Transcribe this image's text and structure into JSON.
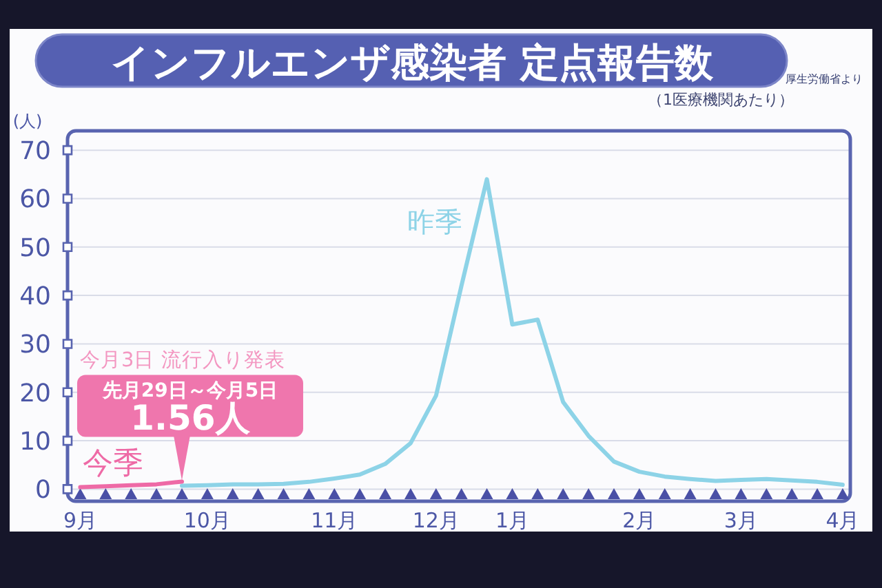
{
  "chart_data": {
    "type": "line",
    "title": "インフルエンザ感染者 定点報告数",
    "subtitle": "（1医療機関あたり）",
    "ylabel": "(人)",
    "annotations": [
      "厚生労働省より",
      "今月3日 流行入り発表",
      "先月29日～今月5日"
    ],
    "categories": [
      "9月",
      null,
      null,
      null,
      null,
      "10月",
      null,
      null,
      null,
      null,
      "11月",
      null,
      null,
      null,
      "12月",
      null,
      null,
      "1月",
      null,
      null,
      null,
      null,
      "2月",
      null,
      null,
      null,
      "3月",
      null,
      null,
      null,
      "4月"
    ],
    "ylim": [
      -2.5,
      74
    ],
    "yticks": [
      0,
      10,
      20,
      30,
      40,
      50,
      60,
      70
    ],
    "grid": "y",
    "series": [
      {
        "name": "昨季",
        "color": "#8dd3e7",
        "values": [
          null,
          null,
          null,
          null,
          0.7,
          0.8,
          1.0,
          1.0,
          1.1,
          1.5,
          2.2,
          3.0,
          5.2,
          9.5,
          19.3,
          42,
          64,
          34,
          35,
          18,
          11,
          5.7,
          3.6,
          2.6,
          2.1,
          1.7,
          1.9,
          2.1,
          1.8,
          1.5,
          0.9
        ]
      },
      {
        "name": "今季",
        "color": "#ee6aa6",
        "values": [
          0.4,
          0.6,
          0.8,
          1.0,
          1.56,
          null,
          null,
          null,
          null,
          null,
          null,
          null,
          null,
          null,
          null,
          null,
          null,
          null,
          null,
          null,
          null,
          null,
          null,
          null,
          null,
          null,
          null,
          null,
          null,
          null,
          null
        ],
        "value_labels": [
          null,
          null,
          null,
          null,
          "1.56人",
          null,
          null,
          null,
          null,
          null,
          null,
          null,
          null,
          null,
          null,
          null,
          null,
          null,
          null,
          null,
          null,
          null,
          null,
          null,
          null,
          null,
          null,
          null,
          null,
          null,
          null
        ]
      }
    ]
  }
}
